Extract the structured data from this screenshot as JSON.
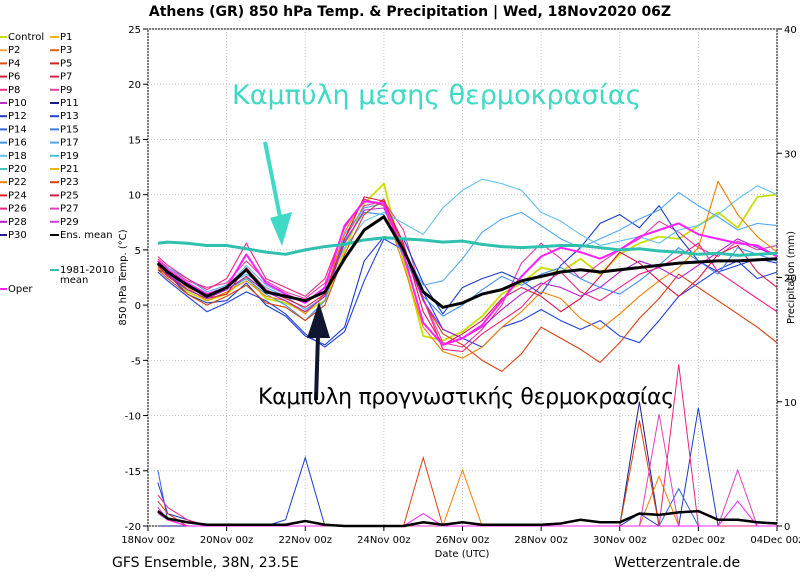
{
  "title": "Athens  (GR)  850 hPa Temp. & Precipitation | Wed, 18Nov2020 06Z",
  "footer_left": "GFS Ensemble, 38N, 23.5E",
  "footer_right": "Wetterzentrale.de",
  "annotations": {
    "mean_label": "Καμπύλη μέσης θερμοκρασίας",
    "mean_color": "#3fd9c6",
    "forecast_label": "Καμπυλη προγνωστικής θερμοκρασίας"
  },
  "legend": {
    "items": [
      {
        "name": "Control",
        "color": "#c8e000"
      },
      {
        "name": "P1",
        "color": "#f5b400"
      },
      {
        "name": "P2",
        "color": "#ffa64d"
      },
      {
        "name": "P3",
        "color": "#e8600a"
      },
      {
        "name": "P4",
        "color": "#e04a12"
      },
      {
        "name": "P5",
        "color": "#d42020"
      },
      {
        "name": "P6",
        "color": "#d0202c"
      },
      {
        "name": "P7",
        "color": "#e0204a"
      },
      {
        "name": "P8",
        "color": "#f0307c"
      },
      {
        "name": "P9",
        "color": "#e040a8"
      },
      {
        "name": "P10",
        "color": "#c030c0"
      },
      {
        "name": "P11",
        "color": "#1a1a8c"
      },
      {
        "name": "P12",
        "color": "#1a3cc8"
      },
      {
        "name": "P13",
        "color": "#2040e0"
      },
      {
        "name": "P14",
        "color": "#3060e0"
      },
      {
        "name": "P15",
        "color": "#3a80e8"
      },
      {
        "name": "P16",
        "color": "#4090f0"
      },
      {
        "name": "P17",
        "color": "#50a8f8"
      },
      {
        "name": "P18",
        "color": "#60c0f0"
      },
      {
        "name": "P19",
        "color": "#40c8d8"
      },
      {
        "name": "P20",
        "color": "#40c8b8"
      },
      {
        "name": "P21",
        "color": "#f5b400"
      },
      {
        "name": "P22",
        "color": "#f08000"
      },
      {
        "name": "P23",
        "color": "#d84010"
      },
      {
        "name": "P24",
        "color": "#e02020"
      },
      {
        "name": "P25",
        "color": "#d81848"
      },
      {
        "name": "P26",
        "color": "#f02080"
      },
      {
        "name": "P27",
        "color": "#e040c0"
      },
      {
        "name": "P28",
        "color": "#b020d0"
      },
      {
        "name": "P29",
        "color": "#d040e0"
      },
      {
        "name": "P30",
        "color": "#202090"
      },
      {
        "name": "Ens. mean",
        "color": "#000000"
      },
      {
        "name": "1981-2010 mean",
        "color": "#30c0b0"
      },
      {
        "name": "Oper",
        "color": "#ff20ff"
      }
    ]
  },
  "chart_data": {
    "type": "line",
    "ylabel": "850 hPa Temp. (°C)",
    "ylabel_right": "Precipitation (mm)",
    "xlabel": "Date (UTC)",
    "ylim": [
      -20,
      25
    ],
    "y2lim": [
      0,
      40
    ],
    "xlim": [
      0,
      16
    ],
    "yticks": [
      "25",
      "20",
      "15",
      "10",
      "5",
      "0",
      "-5",
      "-10",
      "-15",
      "-20"
    ],
    "y2ticks": [
      "40",
      "30",
      "20",
      "10",
      "0"
    ],
    "xticks": [
      "18Nov 00z",
      "20Nov 00z",
      "22Nov 00z",
      "24Nov 00z",
      "26Nov 00z",
      "28Nov 00z",
      "30Nov 00z",
      "02Dec 00z",
      "04Dec 00z"
    ],
    "x_days": [
      0.25,
      0.5,
      1,
      1.5,
      2,
      2.5,
      3,
      3.5,
      4,
      4.5,
      5,
      5.5,
      6,
      6.5,
      7,
      7.5,
      8,
      8.5,
      9,
      9.5,
      10,
      10.5,
      11,
      11.5,
      12,
      12.5,
      13,
      13.5,
      14,
      14.5,
      15,
      15.5,
      16
    ],
    "series": [
      {
        "name": "1981-2010 mean",
        "values": [
          5.6,
          5.7,
          5.6,
          5.4,
          5.4,
          5.1,
          4.8,
          4.6,
          5.0,
          5.3,
          5.5,
          5.9,
          6.1,
          6.0,
          5.9,
          5.7,
          5.8,
          5.5,
          5.3,
          5.2,
          5.3,
          5.4,
          5.4,
          5.2,
          5.0,
          5.1,
          4.9,
          4.8,
          4.6,
          4.7,
          4.5,
          4.6,
          4.7
        ]
      },
      {
        "name": "Ens. mean",
        "values": [
          3.8,
          3.0,
          1.8,
          0.8,
          1.6,
          3.2,
          1.2,
          0.8,
          0.4,
          1.2,
          4.2,
          6.8,
          8.0,
          5.0,
          1.2,
          -0.2,
          0.2,
          1.0,
          1.4,
          2.2,
          2.6,
          3.0,
          3.2,
          3.0,
          3.2,
          3.4,
          3.6,
          3.8,
          3.9,
          4.0,
          4.0,
          4.1,
          4.2
        ]
      },
      {
        "name": "Control",
        "values": [
          3.6,
          2.8,
          1.2,
          0.4,
          1.0,
          2.6,
          0.6,
          0.2,
          -0.6,
          0.4,
          5.0,
          9.2,
          11.0,
          4.0,
          -2.8,
          -3.2,
          -2.4,
          -1.0,
          1.0,
          2.0,
          3.4,
          3.0,
          4.2,
          2.8,
          4.6,
          5.6,
          6.2,
          6.0,
          7.2,
          8.4,
          7.0,
          9.8,
          10.0
        ]
      },
      {
        "name": "P9",
        "values": [
          4.2,
          3.4,
          2.2,
          1.6,
          2.0,
          4.0,
          2.2,
          1.2,
          0.6,
          2.0,
          6.0,
          9.0,
          9.4,
          6.8,
          0.6,
          -3.4,
          -3.8,
          -2.2,
          0.0,
          3.8,
          5.6,
          4.2,
          2.4,
          3.8,
          5.0,
          6.0,
          7.6,
          6.6,
          5.2,
          4.4,
          5.8,
          5.0,
          5.4
        ]
      },
      {
        "name": "P12",
        "values": [
          3.2,
          2.8,
          1.0,
          0.2,
          0.4,
          2.0,
          0.0,
          -1.0,
          -2.8,
          -3.6,
          -2.0,
          4.0,
          6.2,
          6.0,
          2.0,
          -0.8,
          1.6,
          2.4,
          3.0,
          2.2,
          1.0,
          3.6,
          5.2,
          7.4,
          8.2,
          7.0,
          9.0,
          6.2,
          4.0,
          3.0,
          3.6,
          4.2,
          3.8
        ]
      },
      {
        "name": "P13",
        "values": [
          3.0,
          2.2,
          0.8,
          -0.6,
          0.2,
          1.2,
          0.4,
          -0.8,
          -2.6,
          -3.8,
          -2.4,
          2.2,
          6.0,
          5.0,
          1.2,
          -2.2,
          -3.0,
          -3.8,
          -2.0,
          -1.4,
          -0.4,
          -1.4,
          -2.2,
          -1.4,
          -2.8,
          -3.4,
          -1.4,
          0.8,
          2.0,
          3.2,
          4.0,
          2.4,
          3.0
        ]
      },
      {
        "name": "P16",
        "values": [
          3.6,
          3.0,
          1.4,
          0.6,
          1.4,
          2.4,
          1.0,
          0.0,
          -1.4,
          0.4,
          5.8,
          8.4,
          8.2,
          4.4,
          0.8,
          -1.0,
          0.0,
          1.4,
          2.6,
          1.8,
          2.8,
          3.4,
          2.4,
          1.6,
          1.0,
          2.2,
          3.6,
          5.2,
          4.0,
          2.8,
          5.2,
          4.6,
          4.0
        ]
      },
      {
        "name": "P17",
        "values": [
          3.8,
          3.4,
          2.4,
          1.2,
          1.8,
          2.8,
          1.6,
          0.8,
          -0.4,
          0.8,
          6.4,
          8.8,
          9.2,
          4.8,
          1.8,
          2.2,
          4.2,
          6.6,
          7.8,
          8.4,
          7.2,
          6.0,
          5.2,
          6.0,
          6.8,
          7.8,
          8.6,
          10.2,
          9.0,
          8.0,
          6.8,
          7.4,
          7.2
        ]
      },
      {
        "name": "P18",
        "values": [
          4.0,
          3.2,
          2.0,
          1.0,
          1.6,
          3.6,
          1.8,
          1.0,
          0.2,
          1.6,
          5.2,
          7.6,
          8.4,
          7.4,
          6.4,
          8.8,
          10.4,
          11.4,
          11.0,
          10.4,
          8.4,
          7.6,
          6.4,
          5.4,
          5.8,
          6.2,
          5.6,
          6.8,
          7.2,
          8.2,
          9.6,
          10.8,
          10.0
        ]
      },
      {
        "name": "P22",
        "values": [
          3.4,
          2.6,
          1.6,
          0.4,
          1.2,
          2.2,
          0.8,
          0.4,
          -0.8,
          1.0,
          6.6,
          9.6,
          9.0,
          3.6,
          -2.0,
          -4.2,
          -4.8,
          -3.8,
          -2.0,
          -0.6,
          1.2,
          0.6,
          -1.2,
          -2.2,
          -0.8,
          0.8,
          2.2,
          3.4,
          5.2,
          11.2,
          8.2,
          6.2,
          4.8
        ]
      },
      {
        "name": "P23",
        "values": [
          3.2,
          2.4,
          1.0,
          0.0,
          0.8,
          1.8,
          0.2,
          -0.2,
          -1.4,
          0.0,
          4.6,
          8.2,
          9.6,
          5.2,
          0.4,
          -2.6,
          -3.6,
          -5.0,
          -6.0,
          -4.4,
          -2.0,
          -3.0,
          -4.0,
          -5.2,
          -3.4,
          -1.2,
          0.6,
          2.8,
          1.6,
          0.4,
          -0.8,
          -2.0,
          -3.4
        ]
      },
      {
        "name": "P25",
        "values": [
          3.6,
          2.6,
          1.4,
          0.6,
          1.0,
          3.4,
          1.4,
          0.6,
          -0.2,
          1.0,
          6.0,
          9.8,
          9.4,
          5.6,
          -0.6,
          -3.6,
          -2.6,
          -1.4,
          0.6,
          1.6,
          0.8,
          -0.6,
          0.6,
          2.6,
          4.8,
          3.8,
          2.2,
          0.8,
          2.4,
          4.6,
          5.4,
          3.0,
          1.6
        ]
      },
      {
        "name": "P26",
        "values": [
          4.4,
          3.6,
          2.4,
          1.4,
          2.4,
          5.6,
          2.4,
          1.6,
          0.8,
          2.4,
          7.0,
          9.6,
          9.0,
          5.4,
          0.6,
          -4.0,
          -4.2,
          -2.6,
          -1.4,
          -0.2,
          1.8,
          3.0,
          1.2,
          0.4,
          1.6,
          2.8,
          3.4,
          4.4,
          5.6,
          3.0,
          1.8,
          0.6,
          -0.6
        ]
      },
      {
        "name": "P28",
        "values": [
          3.8,
          2.8,
          1.4,
          0.6,
          1.4,
          2.6,
          1.2,
          0.4,
          -0.6,
          0.8,
          5.6,
          8.6,
          8.8,
          5.0,
          0.4,
          -2.2,
          -3.0,
          -2.0,
          -0.4,
          1.0,
          2.0,
          1.6,
          0.8,
          1.6,
          3.0,
          4.0,
          3.4,
          2.4,
          3.6,
          4.8,
          6.0,
          5.2,
          4.4
        ]
      },
      {
        "name": "Oper",
        "values": [
          4.0,
          3.2,
          2.0,
          1.0,
          1.6,
          4.6,
          2.0,
          1.0,
          0.2,
          1.6,
          7.2,
          9.4,
          9.2,
          4.6,
          -1.6,
          -3.6,
          -3.0,
          -1.8,
          0.4,
          2.6,
          4.4,
          5.2,
          4.8,
          4.2,
          5.0,
          6.2,
          6.8,
          7.4,
          6.4,
          6.0,
          5.6,
          5.4,
          4.4
        ]
      }
    ],
    "precip_series": [
      {
        "name": "P11",
        "values": [
          0,
          0,
          0,
          0,
          0,
          0,
          0,
          0,
          0,
          0,
          0,
          0,
          0,
          0,
          0,
          0,
          0,
          0,
          0,
          0,
          0,
          0,
          0,
          0,
          0,
          10,
          0,
          0,
          0,
          0,
          0,
          0,
          0
        ]
      },
      {
        "name": "P12",
        "values": [
          3.5,
          1.0,
          0.5,
          0,
          0,
          0,
          0,
          0.5,
          5.5,
          0,
          0,
          0,
          0,
          0,
          0,
          0,
          0,
          0,
          0,
          0,
          0,
          0,
          0,
          0,
          0,
          1,
          0,
          0,
          9.5,
          0,
          0,
          0,
          0
        ]
      },
      {
        "name": "P14",
        "values": [
          4.5,
          0.5,
          0,
          0,
          0,
          0,
          0,
          0,
          0,
          0,
          0,
          0,
          0,
          0,
          0,
          0,
          0,
          0,
          0,
          0,
          0,
          0,
          0,
          0,
          0,
          0,
          0,
          3,
          0,
          0,
          0,
          0,
          0
        ]
      },
      {
        "name": "P22",
        "values": [
          1.5,
          0.5,
          0,
          0,
          0,
          0,
          0,
          0,
          0,
          0,
          0,
          0,
          0,
          0,
          0,
          0,
          4.5,
          0,
          0,
          0,
          0,
          0,
          0,
          0,
          0,
          0,
          4,
          0,
          0,
          0,
          0,
          0,
          0
        ]
      },
      {
        "name": "P23",
        "values": [
          2.0,
          1.0,
          0,
          0,
          0,
          0,
          0,
          0,
          0,
          0,
          0,
          0,
          0,
          0,
          5.5,
          0,
          0,
          0,
          0,
          0,
          0,
          0,
          0,
          0,
          0,
          8.5,
          0,
          0,
          0,
          0,
          0,
          0,
          0
        ]
      },
      {
        "name": "P26",
        "values": [
          2.5,
          1.5,
          0.5,
          0,
          0,
          0,
          0,
          0,
          0,
          0,
          0,
          0,
          0,
          0,
          0,
          0,
          0,
          0,
          0,
          0,
          0,
          0,
          0,
          0,
          0,
          0,
          0,
          13,
          0,
          0,
          0,
          0,
          0
        ]
      },
      {
        "name": "P27",
        "values": [
          1.0,
          0.5,
          0,
          0,
          0,
          0,
          0,
          0,
          0,
          0,
          0,
          0,
          0,
          0,
          0,
          0,
          0,
          0,
          0,
          0,
          0,
          0,
          0,
          0,
          0,
          0,
          9,
          0,
          0,
          0,
          4.5,
          0,
          0
        ]
      },
      {
        "name": "Oper",
        "values": [
          1.5,
          0.5,
          0,
          0,
          0,
          0,
          0,
          0,
          0,
          0,
          0,
          0,
          0,
          0,
          1,
          0,
          0,
          0,
          0,
          0,
          0,
          0,
          0,
          0,
          0,
          0,
          0,
          0,
          0,
          0,
          2,
          0,
          0
        ]
      },
      {
        "name": "Ens. mean",
        "values": [
          1.2,
          0.6,
          0.3,
          0.1,
          0.1,
          0.1,
          0.1,
          0.1,
          0.4,
          0.1,
          0,
          0,
          0,
          0,
          0.3,
          0.1,
          0.3,
          0.1,
          0.1,
          0.1,
          0.1,
          0.2,
          0.5,
          0.3,
          0.3,
          1.0,
          0.9,
          1.1,
          1.2,
          0.5,
          0.5,
          0.3,
          0.2
        ]
      }
    ]
  }
}
